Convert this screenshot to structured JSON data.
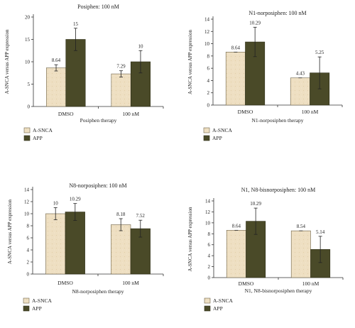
{
  "figure": {
    "legend_labels": [
      "A-SNCA",
      "APP"
    ],
    "colors": {
      "a_snca": "#eedfc2",
      "app": "#4a4a28",
      "a_snca_edge": "#6e6348",
      "app_edge": "#2f2f18"
    }
  },
  "chart_data": [
    {
      "type": "bar",
      "title": "Posiphen: 100 nM",
      "xlabel": "Posiphen therapy",
      "ylabel": "A-SNCA versus APP expression",
      "categories": [
        "DMSO",
        "100 nM"
      ],
      "ylim": [
        0,
        20
      ],
      "yticks": [
        0,
        5,
        10,
        15,
        20
      ],
      "series": [
        {
          "name": "A-SNCA",
          "values": [
            8.64,
            7.29
          ],
          "errors": [
            0.7,
            0.7
          ],
          "labels": [
            "8.64",
            "7.29"
          ]
        },
        {
          "name": "APP",
          "values": [
            15,
            10
          ],
          "errors": [
            2.5,
            2.5
          ],
          "labels": [
            "15",
            "10"
          ]
        }
      ],
      "legend": "bottom-left"
    },
    {
      "type": "bar",
      "title": "N1-norposiphen: 100 nM",
      "xlabel": "N1-norposiphen therapy",
      "ylabel": "A-SNCA versus APP expression",
      "categories": [
        "DMSO",
        "100 nM"
      ],
      "ylim": [
        0,
        14
      ],
      "yticks": [
        0,
        2,
        4,
        6,
        8,
        10,
        12,
        14
      ],
      "series": [
        {
          "name": "A-SNCA",
          "values": [
            8.64,
            4.43
          ],
          "errors": [
            0.0,
            0.0
          ],
          "labels": [
            "8.64",
            "4.43"
          ]
        },
        {
          "name": "APP",
          "values": [
            10.29,
            5.25
          ],
          "errors": [
            2.4,
            2.6
          ],
          "labels": [
            "10.29",
            "5.25"
          ]
        }
      ],
      "legend": "bottom-left"
    },
    {
      "type": "bar",
      "title": "N8-norposiphen: 100 nM",
      "xlabel": "N8-norposiphen therapy",
      "ylabel": "A-SNCA versus APP expression",
      "categories": [
        "DMSO",
        "100 nM"
      ],
      "ylim": [
        0,
        14
      ],
      "yticks": [
        0,
        2,
        4,
        6,
        8,
        10,
        12,
        14
      ],
      "series": [
        {
          "name": "A-SNCA",
          "values": [
            10,
            8.18
          ],
          "errors": [
            1.0,
            1.0
          ],
          "labels": [
            "10",
            "8.18"
          ]
        },
        {
          "name": "APP",
          "values": [
            10.29,
            7.52
          ],
          "errors": [
            1.4,
            1.4
          ],
          "labels": [
            "10.29",
            "7.52"
          ]
        }
      ],
      "legend": "bottom-left"
    },
    {
      "type": "bar",
      "title": "N1, N8-bisnorposiphen: 100 nM",
      "xlabel": "N1, N8-bisnorposiphen therapy",
      "ylabel": "A-SNCA versus APP expression",
      "categories": [
        "DMSO",
        "100 nM"
      ],
      "ylim": [
        0,
        14
      ],
      "yticks": [
        0,
        2,
        4,
        6,
        8,
        10,
        12,
        14
      ],
      "series": [
        {
          "name": "A-SNCA",
          "values": [
            8.64,
            8.54
          ],
          "errors": [
            0.0,
            0.0
          ],
          "labels": [
            "8.64",
            "8.54"
          ]
        },
        {
          "name": "APP",
          "values": [
            10.29,
            5.14
          ],
          "errors": [
            2.4,
            2.4
          ],
          "labels": [
            "10.29",
            "5.14"
          ]
        }
      ],
      "legend": "bottom-left"
    }
  ]
}
